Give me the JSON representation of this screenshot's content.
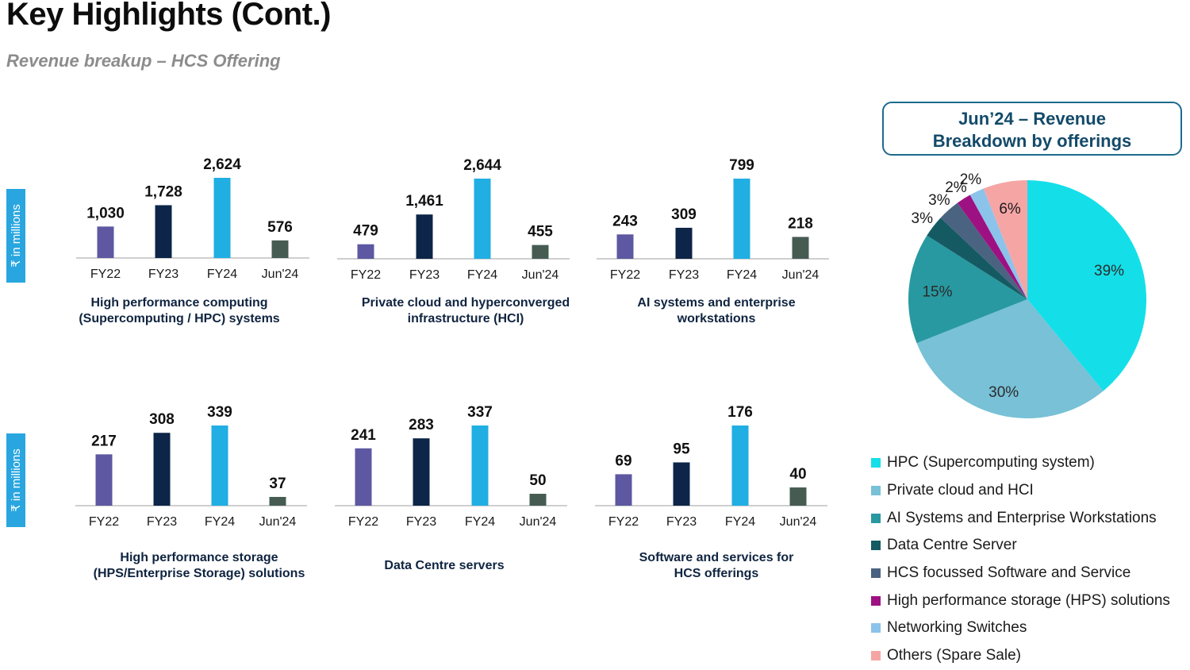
{
  "header": {
    "title": "Key Highlights (Cont.)",
    "subtitle": "Revenue breakup – HCS Offering"
  },
  "unit_label": "₹ in millions",
  "colors": {
    "FY22": "#5d58a1",
    "FY23": "#0c2548",
    "FY24": "#20aee3",
    "Jun24": "#465c52",
    "axis": "#bfbfbf"
  },
  "chart_data": [
    {
      "type": "bar",
      "title": "High performance computing\n(Supercomputing / HPC) systems",
      "categories": [
        "FY22",
        "FY23",
        "FY24",
        "Jun'24"
      ],
      "values": [
        1030,
        1728,
        2624,
        576
      ],
      "labels": [
        "1,030",
        "1,728",
        "2,624",
        "576"
      ]
    },
    {
      "type": "bar",
      "title": "Private cloud and hyperconverged\ninfrastructure (HCI)",
      "categories": [
        "FY22",
        "FY23",
        "FY24",
        "Jun'24"
      ],
      "values": [
        479,
        1461,
        2644,
        455
      ],
      "labels": [
        "479",
        "1,461",
        "2,644",
        "455"
      ]
    },
    {
      "type": "bar",
      "title": "AI systems and enterprise\nworkstations",
      "categories": [
        "FY22",
        "FY23",
        "FY24",
        "Jun'24"
      ],
      "values": [
        243,
        309,
        799,
        218
      ],
      "labels": [
        "243",
        "309",
        "799",
        "218"
      ]
    },
    {
      "type": "bar",
      "title": "High performance storage\n(HPS/Enterprise Storage) solutions",
      "categories": [
        "FY22",
        "FY23",
        "FY24",
        "Jun'24"
      ],
      "values": [
        217,
        308,
        339,
        37
      ],
      "labels": [
        "217",
        "308",
        "339",
        "37"
      ]
    },
    {
      "type": "bar",
      "title": "Data Centre servers",
      "categories": [
        "FY22",
        "FY23",
        "FY24",
        "Jun'24"
      ],
      "values": [
        241,
        283,
        337,
        50
      ],
      "labels": [
        "241",
        "283",
        "337",
        "50"
      ]
    },
    {
      "type": "bar",
      "title": "Software and  services for\nHCS offerings",
      "categories": [
        "FY22",
        "FY23",
        "FY24",
        "Jun'24"
      ],
      "values": [
        69,
        95,
        176,
        40
      ],
      "labels": [
        "69",
        "95",
        "176",
        "40"
      ]
    },
    {
      "type": "pie",
      "title": "Jun’24 – Revenue\nBreakdown by offerings",
      "slices": [
        {
          "label": "HPC (Supercomputing system)",
          "value": 39,
          "text": "39%",
          "color": "#14dfe9"
        },
        {
          "label": "Private cloud and HCI",
          "value": 30,
          "text": "30%",
          "color": "#78c1d7"
        },
        {
          "label": "AI Systems and Enterprise Workstations",
          "value": 15,
          "text": "15%",
          "color": "#2899a1"
        },
        {
          "label": "Data Centre Server",
          "value": 3,
          "text": "3%",
          "color": "#155a63"
        },
        {
          "label": "HCS focussed Software and Service",
          "value": 3,
          "text": "3%",
          "color": "#4a6380"
        },
        {
          "label": "High performance storage (HPS) solutions",
          "value": 2,
          "text": "2%",
          "color": "#9e1183"
        },
        {
          "label": "Networking Switches",
          "value": 2,
          "text": "2%",
          "color": "#8cc3ea"
        },
        {
          "label": "Others (Spare Sale)",
          "value": 6,
          "text": "6%",
          "color": "#f6a5a5"
        }
      ]
    }
  ]
}
